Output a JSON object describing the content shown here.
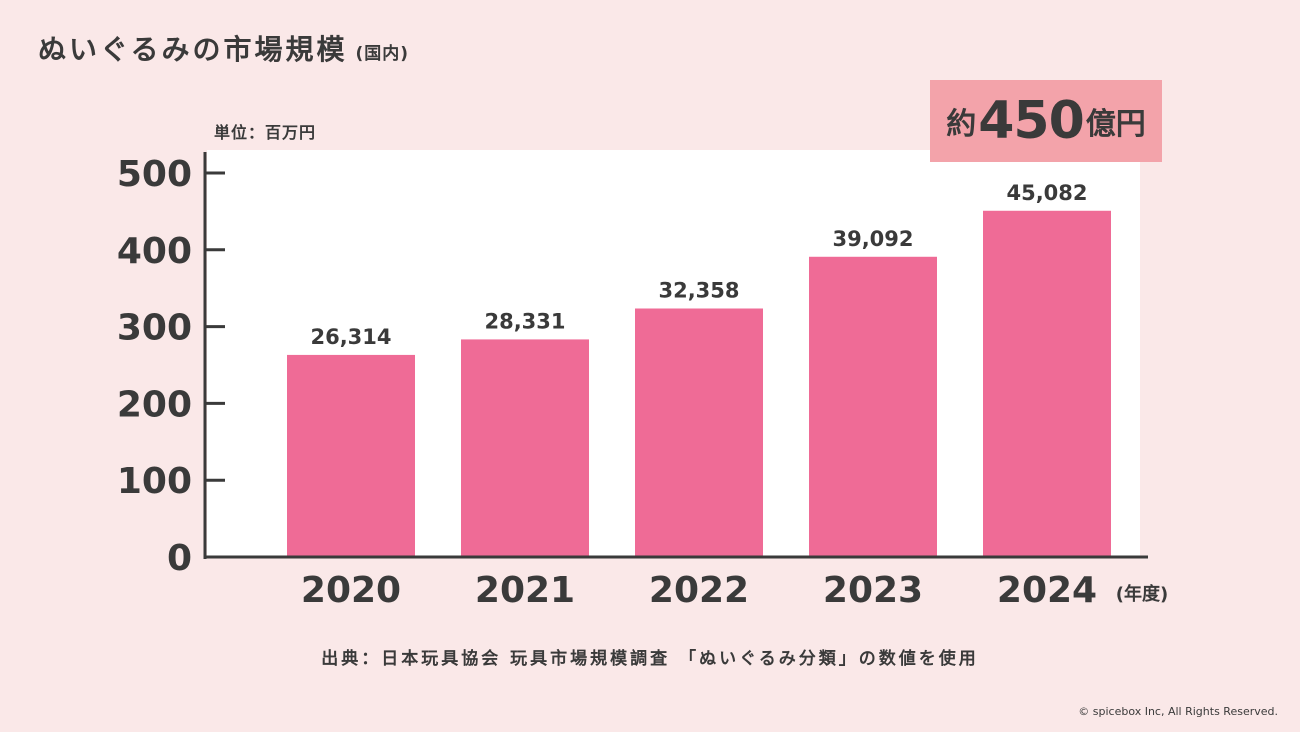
{
  "header": {
    "title": "ぬいぐるみの市場規模",
    "subtitle": "(国内)"
  },
  "callout": {
    "prefix": "約",
    "value": "450",
    "suffix": "億円"
  },
  "footer": {
    "source": "出典：日本玩具協会 玩具市場規模調査 「ぬいぐるみ分類」の数値を使用",
    "copyright": "© spicebox Inc, All Rights Reserved."
  },
  "chart_data": {
    "type": "bar",
    "unit_label": "単位：百万円",
    "categories": [
      "2020",
      "2021",
      "2022",
      "2023",
      "2024"
    ],
    "values": [
      26314,
      28331,
      32358,
      39092,
      45082
    ],
    "value_labels": [
      "26,314",
      "28,331",
      "32,358",
      "39,092",
      "45,082"
    ],
    "xlabel": "(年度)",
    "y_ticks": [
      0,
      100,
      200,
      300,
      400,
      500
    ],
    "y_tick_labels": [
      "0",
      "100",
      "200",
      "300",
      "400",
      "500"
    ],
    "y_tick_scale": 100,
    "ylim": [
      0,
      50000
    ],
    "grid": false,
    "colors": {
      "bar": "#ef6b96",
      "axis": "#3a3a3a",
      "plot_background": "#ffffff",
      "page_background": "#fae8e8",
      "callout_background": "#f3a3aa"
    }
  }
}
